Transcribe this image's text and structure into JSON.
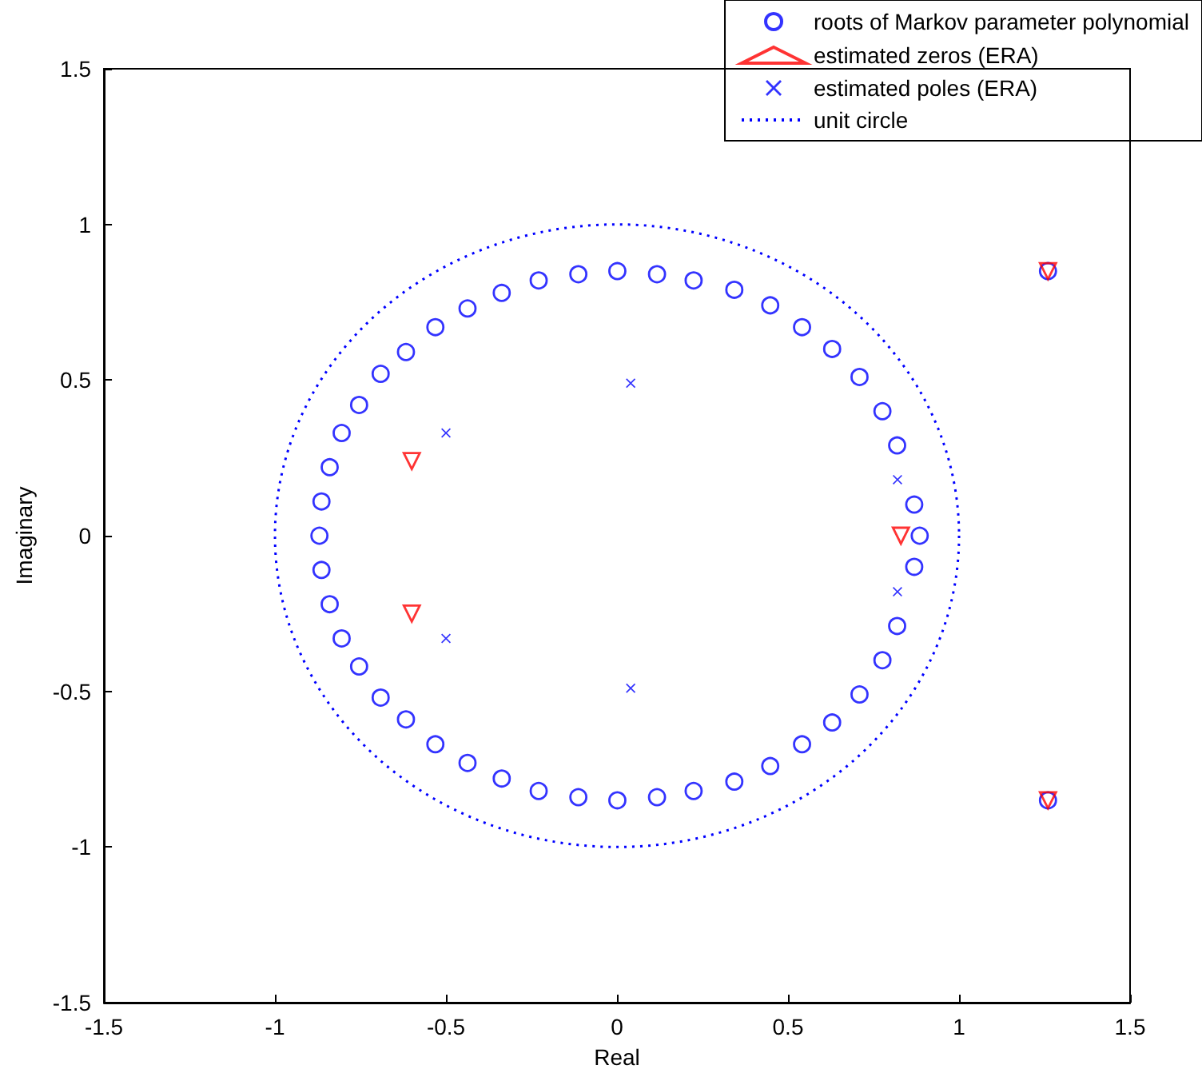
{
  "chart_data": {
    "type": "scatter",
    "xlabel": "Real",
    "ylabel": "Imaginary",
    "xlim": [
      -1.5,
      1.5
    ],
    "ylim": [
      -1.5,
      1.5
    ],
    "xticks": [
      -1.5,
      -1,
      -0.5,
      0,
      0.5,
      1,
      1.5
    ],
    "yticks": [
      -1.5,
      -1,
      -0.5,
      0,
      0.5,
      1,
      1.5
    ],
    "grid": false,
    "legend": "top right",
    "annotations": [
      "unit circle"
    ],
    "series": [
      {
        "name": "roots of Markov parameter polynomial",
        "marker": "circle",
        "color": "#0000ff",
        "x": [
          0.885,
          0.869,
          0.819,
          0.776,
          0.709,
          0.629,
          0.541,
          0.448,
          0.343,
          0.224,
          0.117,
          0.001,
          -0.113,
          -0.229,
          -0.337,
          -0.437,
          -0.531,
          -0.617,
          -0.691,
          -0.754,
          -0.805,
          -0.84,
          -0.864,
          -0.87,
          -0.864,
          -0.84,
          -0.805,
          -0.754,
          -0.691,
          -0.617,
          -0.531,
          -0.437,
          -0.337,
          -0.229,
          -0.113,
          0.001,
          0.117,
          0.224,
          0.343,
          0.448,
          0.541,
          0.629,
          0.709,
          0.776,
          0.819,
          0.869,
          1.26,
          1.26
        ],
        "values": [
          0,
          0.1,
          0.29,
          0.4,
          0.51,
          0.6,
          0.67,
          0.74,
          0.79,
          0.82,
          0.84,
          0.85,
          0.84,
          0.82,
          0.78,
          0.73,
          0.67,
          0.59,
          0.52,
          0.42,
          0.33,
          0.22,
          0.11,
          0,
          -0.11,
          -0.22,
          -0.33,
          -0.42,
          -0.52,
          -0.59,
          -0.67,
          -0.73,
          -0.78,
          -0.82,
          -0.84,
          -0.85,
          -0.84,
          -0.82,
          -0.79,
          -0.74,
          -0.67,
          -0.6,
          -0.51,
          -0.4,
          -0.29,
          -0.1,
          0.85,
          -0.85
        ]
      },
      {
        "name": "estimated zeros (ERA)",
        "marker": "triangle",
        "color": "#ff0000",
        "x": [
          -0.6,
          -0.6,
          0.83,
          1.26,
          1.26
        ],
        "values": [
          0.24,
          -0.25,
          0,
          0.85,
          -0.85
        ]
      },
      {
        "name": "estimated poles (ERA)",
        "marker": "cross",
        "color": "#0000ff",
        "x": [
          -0.5,
          -0.5,
          0.04,
          0.04,
          0.82,
          0.82
        ],
        "values": [
          0.33,
          -0.33,
          0.49,
          -0.49,
          0.18,
          -0.18
        ]
      }
    ]
  }
}
